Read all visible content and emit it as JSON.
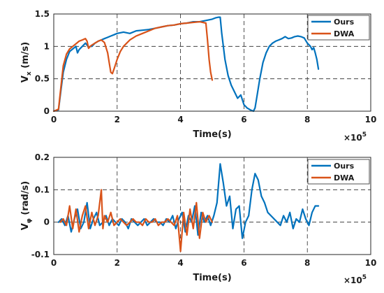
{
  "chart_data": [
    {
      "type": "line",
      "xlabel": "Time(s)",
      "ylabel_main": "V",
      "ylabel_sub": "x",
      "ylabel_unit": " (m/s)",
      "x_multiplier": "×10",
      "x_multiplier_exp": "5",
      "xlim": [
        0,
        10
      ],
      "ylim": [
        0,
        1.5
      ],
      "xticks": [
        "0",
        "2",
        "4",
        "6",
        "8",
        "10"
      ],
      "yticks": [
        "0",
        "0.5",
        "1",
        "1.5"
      ],
      "grid": "dashed",
      "legend": "top-right",
      "series": [
        {
          "name": "Ours",
          "color": "#0072BD",
          "x": [
            0.0,
            0.15,
            0.22,
            0.3,
            0.4,
            0.5,
            0.6,
            0.7,
            0.75,
            0.8,
            0.9,
            1.0,
            1.05,
            1.1,
            1.15,
            1.2,
            1.3,
            1.4,
            1.5,
            1.6,
            1.7,
            1.8,
            1.9,
            2.0,
            2.2,
            2.4,
            2.6,
            2.8,
            3.0,
            3.2,
            3.4,
            3.6,
            3.8,
            4.0,
            4.2,
            4.4,
            4.6,
            4.8,
            5.0,
            5.1,
            5.2,
            5.25,
            5.3,
            5.35,
            5.4,
            5.5,
            5.6,
            5.7,
            5.8,
            5.9,
            6.0,
            6.1,
            6.2,
            6.3,
            6.35,
            6.4,
            6.5,
            6.6,
            6.7,
            6.8,
            6.9,
            7.0,
            7.1,
            7.2,
            7.3,
            7.4,
            7.5,
            7.6,
            7.7,
            7.8,
            7.9,
            8.0,
            8.1,
            8.15,
            8.2,
            8.25,
            8.3,
            8.35
          ],
          "y": [
            0.0,
            0.02,
            0.3,
            0.6,
            0.8,
            0.92,
            0.96,
            1.0,
            0.9,
            0.95,
            1.0,
            1.05,
            1.02,
            0.98,
            1.0,
            1.0,
            1.05,
            1.08,
            1.1,
            1.12,
            1.14,
            1.16,
            1.18,
            1.2,
            1.22,
            1.2,
            1.24,
            1.25,
            1.26,
            1.28,
            1.3,
            1.32,
            1.33,
            1.35,
            1.36,
            1.38,
            1.38,
            1.4,
            1.42,
            1.44,
            1.45,
            1.45,
            1.2,
            1.0,
            0.8,
            0.55,
            0.4,
            0.3,
            0.2,
            0.25,
            0.1,
            0.05,
            0.02,
            0.0,
            0.05,
            0.2,
            0.5,
            0.75,
            0.9,
            1.0,
            1.05,
            1.08,
            1.1,
            1.12,
            1.15,
            1.12,
            1.13,
            1.15,
            1.16,
            1.15,
            1.13,
            1.05,
            1.0,
            0.95,
            0.98,
            0.9,
            0.8,
            0.65
          ]
        },
        {
          "name": "DWA",
          "color": "#D95319",
          "x": [
            0.0,
            0.15,
            0.22,
            0.3,
            0.4,
            0.5,
            0.6,
            0.7,
            0.8,
            0.9,
            1.0,
            1.05,
            1.1,
            1.15,
            1.2,
            1.3,
            1.4,
            1.5,
            1.6,
            1.7,
            1.75,
            1.8,
            1.85,
            1.9,
            2.0,
            2.1,
            2.2,
            2.4,
            2.6,
            2.8,
            3.0,
            3.2,
            3.4,
            3.6,
            3.8,
            4.0,
            4.2,
            4.4,
            4.6,
            4.7,
            4.8,
            4.85,
            4.9,
            4.95,
            5.0
          ],
          "y": [
            0.0,
            0.03,
            0.35,
            0.7,
            0.88,
            0.96,
            1.0,
            1.04,
            1.08,
            1.1,
            1.12,
            1.08,
            0.97,
            1.0,
            1.02,
            1.05,
            1.08,
            1.1,
            1.06,
            0.9,
            0.75,
            0.6,
            0.58,
            0.65,
            0.8,
            0.92,
            1.0,
            1.1,
            1.16,
            1.2,
            1.24,
            1.28,
            1.3,
            1.32,
            1.33,
            1.35,
            1.36,
            1.37,
            1.38,
            1.37,
            1.36,
            1.1,
            0.8,
            0.6,
            0.48
          ]
        }
      ]
    },
    {
      "type": "line",
      "xlabel": "Time(s)",
      "ylabel_main": "V",
      "ylabel_sub": "φ",
      "ylabel_unit": " (rad/s)",
      "x_multiplier": "×10",
      "x_multiplier_exp": "5",
      "xlim": [
        0,
        10
      ],
      "ylim": [
        -0.1,
        0.2
      ],
      "xticks": [
        "0",
        "2",
        "4",
        "6",
        "8",
        "10"
      ],
      "yticks": [
        "-0.1",
        "0",
        "0.1",
        "0.2"
      ],
      "grid": "dashed",
      "legend": "top-right",
      "series": [
        {
          "name": "Ours",
          "color": "#0072BD",
          "x": [
            0.15,
            0.25,
            0.35,
            0.45,
            0.55,
            0.65,
            0.75,
            0.85,
            0.95,
            1.05,
            1.15,
            1.25,
            1.35,
            1.45,
            1.55,
            1.65,
            1.75,
            1.85,
            1.95,
            2.05,
            2.15,
            2.25,
            2.35,
            2.45,
            2.55,
            2.65,
            2.75,
            2.85,
            2.95,
            3.05,
            3.15,
            3.25,
            3.35,
            3.45,
            3.55,
            3.65,
            3.75,
            3.85,
            3.95,
            4.05,
            4.15,
            4.25,
            4.35,
            4.45,
            4.55,
            4.65,
            4.75,
            4.85,
            4.95,
            5.05,
            5.15,
            5.25,
            5.35,
            5.45,
            5.55,
            5.65,
            5.75,
            5.85,
            5.95,
            6.05,
            6.15,
            6.25,
            6.35,
            6.45,
            6.55,
            6.65,
            6.75,
            6.85,
            6.95,
            7.05,
            7.15,
            7.25,
            7.35,
            7.45,
            7.55,
            7.65,
            7.75,
            7.85,
            7.95,
            8.05,
            8.15,
            8.25,
            8.35
          ],
          "y": [
            0.0,
            0.01,
            -0.01,
            0.02,
            -0.03,
            0.01,
            0.04,
            -0.02,
            0.0,
            0.06,
            -0.02,
            0.01,
            0.03,
            -0.01,
            0.0,
            0.02,
            -0.01,
            0.01,
            0.0,
            -0.01,
            0.01,
            0.0,
            -0.02,
            0.01,
            0.0,
            -0.01,
            0.0,
            0.01,
            -0.01,
            0.0,
            0.01,
            0.0,
            0.0,
            -0.01,
            0.01,
            0.0,
            0.02,
            -0.02,
            0.01,
            0.03,
            -0.03,
            0.02,
            0.0,
            0.05,
            -0.04,
            0.03,
            0.0,
            0.02,
            -0.01,
            0.02,
            0.06,
            0.18,
            0.12,
            0.05,
            0.08,
            -0.02,
            0.04,
            0.05,
            -0.05,
            0.0,
            0.02,
            0.1,
            0.15,
            0.13,
            0.08,
            0.06,
            0.03,
            0.02,
            0.01,
            0.0,
            -0.01,
            0.02,
            0.0,
            0.03,
            -0.02,
            0.01,
            0.0,
            0.04,
            0.01,
            -0.01,
            0.03,
            0.05,
            0.05
          ]
        },
        {
          "name": "DWA",
          "color": "#D95319",
          "x": [
            0.2,
            0.3,
            0.4,
            0.5,
            0.6,
            0.7,
            0.8,
            0.9,
            1.0,
            1.1,
            1.2,
            1.3,
            1.4,
            1.5,
            1.55,
            1.6,
            1.7,
            1.8,
            1.9,
            2.0,
            2.1,
            2.2,
            2.3,
            2.4,
            2.5,
            2.6,
            2.7,
            2.8,
            2.9,
            3.0,
            3.1,
            3.2,
            3.3,
            3.4,
            3.5,
            3.6,
            3.7,
            3.8,
            3.9,
            4.0,
            4.1,
            4.2,
            4.3,
            4.4,
            4.5,
            4.6,
            4.7,
            4.8,
            4.9,
            5.0
          ],
          "y": [
            0.0,
            0.01,
            -0.01,
            0.05,
            -0.02,
            0.04,
            -0.03,
            0.02,
            0.05,
            -0.02,
            0.03,
            -0.01,
            0.02,
            0.1,
            -0.02,
            0.02,
            0.0,
            0.03,
            -0.01,
            0.0,
            0.01,
            0.0,
            -0.01,
            0.0,
            0.01,
            0.0,
            0.0,
            -0.01,
            0.01,
            0.0,
            0.0,
            0.01,
            -0.01,
            0.0,
            0.0,
            0.01,
            0.0,
            -0.01,
            0.02,
            -0.09,
            0.03,
            -0.04,
            0.04,
            -0.02,
            0.06,
            -0.05,
            0.03,
            0.0,
            0.02,
            0.0
          ]
        }
      ]
    }
  ]
}
